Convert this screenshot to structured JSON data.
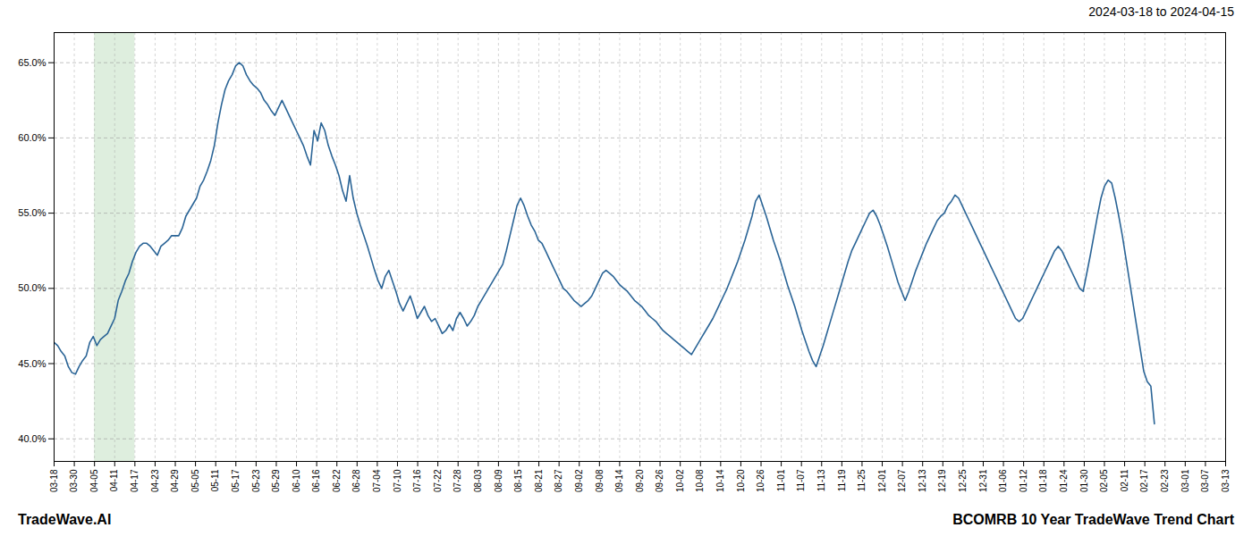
{
  "chart_data": {
    "type": "line",
    "title": "BCOMRB 10 Year TradeWave Trend Chart",
    "subtitle": "2024-03-18 to 2024-04-15",
    "annotations": [
      "TradeWave.AI"
    ],
    "color": "#2a6496",
    "grid": true,
    "highlight": {
      "start": 11.3448,
      "end": 22.6897,
      "color": "#deeede"
    },
    "xlim": [
      0,
      329
    ],
    "xticks": [
      {
        "value": 0,
        "label": "03-18"
      },
      {
        "value": 5.6724,
        "label": "03-30"
      },
      {
        "value": 11.3448,
        "label": "04-05"
      },
      {
        "value": 17.0172,
        "label": "04-11"
      },
      {
        "value": 22.6897,
        "label": "04-17"
      },
      {
        "value": 28.3621,
        "label": "04-23"
      },
      {
        "value": 34.0345,
        "label": "04-29"
      },
      {
        "value": 39.7069,
        "label": "05-05"
      },
      {
        "value": 45.3793,
        "label": "05-11"
      },
      {
        "value": 51.0517,
        "label": "05-17"
      },
      {
        "value": 56.7241,
        "label": "05-23"
      },
      {
        "value": 62.3966,
        "label": "05-29"
      },
      {
        "value": 68.069,
        "label": "06-10"
      },
      {
        "value": 73.7414,
        "label": "06-16"
      },
      {
        "value": 79.4138,
        "label": "06-22"
      },
      {
        "value": 85.0862,
        "label": "06-28"
      },
      {
        "value": 90.7586,
        "label": "07-04"
      },
      {
        "value": 96.431,
        "label": "07-10"
      },
      {
        "value": 102.1034,
        "label": "07-16"
      },
      {
        "value": 107.7759,
        "label": "07-22"
      },
      {
        "value": 113.4483,
        "label": "07-28"
      },
      {
        "value": 119.1207,
        "label": "08-03"
      },
      {
        "value": 124.7931,
        "label": "08-09"
      },
      {
        "value": 130.4655,
        "label": "08-15"
      },
      {
        "value": 136.1379,
        "label": "08-21"
      },
      {
        "value": 141.8103,
        "label": "08-27"
      },
      {
        "value": 147.4828,
        "label": "09-02"
      },
      {
        "value": 153.1552,
        "label": "09-08"
      },
      {
        "value": 158.8276,
        "label": "09-14"
      },
      {
        "value": 164.5,
        "label": "09-20"
      },
      {
        "value": 170.1724,
        "label": "09-26"
      },
      {
        "value": 175.8448,
        "label": "10-02"
      },
      {
        "value": 181.5172,
        "label": "10-08"
      },
      {
        "value": 187.1897,
        "label": "10-14"
      },
      {
        "value": 192.8621,
        "label": "10-20"
      },
      {
        "value": 198.5345,
        "label": "10-26"
      },
      {
        "value": 204.2069,
        "label": "11-01"
      },
      {
        "value": 209.8793,
        "label": "11-07"
      },
      {
        "value": 215.5517,
        "label": "11-13"
      },
      {
        "value": 221.2241,
        "label": "11-19"
      },
      {
        "value": 226.8966,
        "label": "11-25"
      },
      {
        "value": 232.569,
        "label": "12-01"
      },
      {
        "value": 238.2414,
        "label": "12-07"
      },
      {
        "value": 243.9138,
        "label": "12-13"
      },
      {
        "value": 249.5862,
        "label": "12-19"
      },
      {
        "value": 255.2586,
        "label": "12-25"
      },
      {
        "value": 260.931,
        "label": "12-31"
      },
      {
        "value": 266.6034,
        "label": "01-06"
      },
      {
        "value": 272.2759,
        "label": "01-12"
      },
      {
        "value": 277.9483,
        "label": "01-18"
      },
      {
        "value": 283.6207,
        "label": "01-24"
      },
      {
        "value": 289.2931,
        "label": "01-30"
      },
      {
        "value": 294.9655,
        "label": "02-05"
      },
      {
        "value": 300.6379,
        "label": "02-11"
      },
      {
        "value": 306.3103,
        "label": "02-17"
      },
      {
        "value": 311.9828,
        "label": "02-23"
      },
      {
        "value": 317.6552,
        "label": "03-01"
      },
      {
        "value": 323.3276,
        "label": "03-07"
      },
      {
        "value": 329,
        "label": "03-13"
      }
    ],
    "ylim": [
      0.385,
      0.67
    ],
    "yticks": [
      {
        "value": 0.4,
        "label": "40.0%"
      },
      {
        "value": 0.45,
        "label": "45.0%"
      },
      {
        "value": 0.5,
        "label": "50.0%"
      },
      {
        "value": 0.55,
        "label": "55.0%"
      },
      {
        "value": 0.6,
        "label": "60.0%"
      },
      {
        "value": 0.65,
        "label": "65.0%"
      }
    ],
    "values": [
      0.464,
      0.462,
      0.458,
      0.455,
      0.448,
      0.444,
      0.443,
      0.448,
      0.452,
      0.455,
      0.464,
      0.468,
      0.462,
      0.466,
      0.468,
      0.47,
      0.475,
      0.48,
      0.492,
      0.498,
      0.505,
      0.51,
      0.518,
      0.524,
      0.528,
      0.53,
      0.53,
      0.528,
      0.525,
      0.522,
      0.528,
      0.53,
      0.532,
      0.535,
      0.535,
      0.535,
      0.54,
      0.548,
      0.552,
      0.556,
      0.56,
      0.568,
      0.572,
      0.578,
      0.585,
      0.595,
      0.61,
      0.622,
      0.632,
      0.638,
      0.642,
      0.648,
      0.65,
      0.648,
      0.642,
      0.638,
      0.635,
      0.633,
      0.63,
      0.625,
      0.622,
      0.618,
      0.615,
      0.62,
      0.625,
      0.62,
      0.615,
      0.61,
      0.605,
      0.6,
      0.595,
      0.588,
      0.582,
      0.605,
      0.598,
      0.61,
      0.605,
      0.595,
      0.588,
      0.582,
      0.575,
      0.565,
      0.558,
      0.575,
      0.56,
      0.55,
      0.542,
      0.535,
      0.528,
      0.52,
      0.512,
      0.505,
      0.5,
      0.508,
      0.512,
      0.505,
      0.498,
      0.49,
      0.485,
      0.49,
      0.495,
      0.488,
      0.48,
      0.484,
      0.488,
      0.482,
      0.478,
      0.48,
      0.475,
      0.47,
      0.472,
      0.476,
      0.472,
      0.48,
      0.484,
      0.48,
      0.475,
      0.478,
      0.482,
      0.488,
      0.492,
      0.496,
      0.5,
      0.504,
      0.508,
      0.512,
      0.516,
      0.525,
      0.535,
      0.545,
      0.555,
      0.56,
      0.555,
      0.548,
      0.542,
      0.538,
      0.532,
      0.53,
      0.525,
      0.52,
      0.515,
      0.51,
      0.505,
      0.5,
      0.498,
      0.495,
      0.492,
      0.49,
      0.488,
      0.49,
      0.492,
      0.495,
      0.5,
      0.505,
      0.51,
      0.512,
      0.51,
      0.508,
      0.505,
      0.502,
      0.5,
      0.498,
      0.495,
      0.492,
      0.49,
      0.488,
      0.485,
      0.482,
      0.48,
      0.478,
      0.475,
      0.472,
      0.47,
      0.468,
      0.466,
      0.464,
      0.462,
      0.46,
      0.458,
      0.456,
      0.46,
      0.464,
      0.468,
      0.472,
      0.476,
      0.48,
      0.485,
      0.49,
      0.495,
      0.5,
      0.506,
      0.512,
      0.518,
      0.525,
      0.532,
      0.54,
      0.548,
      0.558,
      0.562,
      0.555,
      0.548,
      0.54,
      0.532,
      0.525,
      0.518,
      0.51,
      0.502,
      0.495,
      0.488,
      0.48,
      0.472,
      0.465,
      0.458,
      0.452,
      0.448,
      0.455,
      0.462,
      0.47,
      0.478,
      0.486,
      0.494,
      0.502,
      0.51,
      0.518,
      0.525,
      0.53,
      0.535,
      0.54,
      0.545,
      0.55,
      0.552,
      0.548,
      0.542,
      0.535,
      0.528,
      0.52,
      0.512,
      0.504,
      0.498,
      0.492,
      0.498,
      0.505,
      0.512,
      0.518,
      0.524,
      0.53,
      0.535,
      0.54,
      0.545,
      0.548,
      0.55,
      0.555,
      0.558,
      0.562,
      0.56,
      0.555,
      0.55,
      0.545,
      0.54,
      0.535,
      0.53,
      0.525,
      0.52,
      0.515,
      0.51,
      0.505,
      0.5,
      0.495,
      0.49,
      0.485,
      0.48,
      0.478,
      0.48,
      0.485,
      0.49,
      0.495,
      0.5,
      0.505,
      0.51,
      0.515,
      0.52,
      0.525,
      0.528,
      0.525,
      0.52,
      0.515,
      0.51,
      0.505,
      0.5,
      0.498,
      0.51,
      0.522,
      0.535,
      0.548,
      0.56,
      0.568,
      0.572,
      0.57,
      0.56,
      0.548,
      0.535,
      0.52,
      0.505,
      0.49,
      0.475,
      0.46,
      0.445,
      0.438,
      0.435,
      0.41
    ]
  }
}
